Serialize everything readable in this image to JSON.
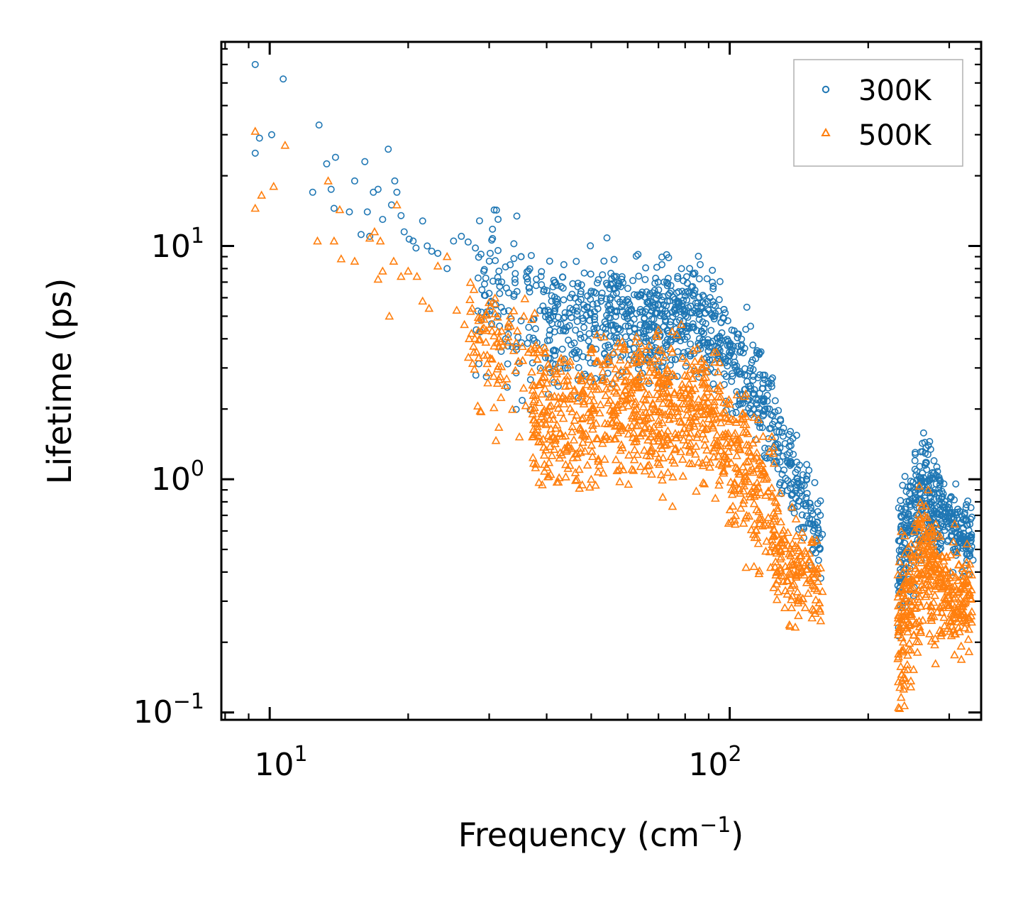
{
  "chart_data": {
    "type": "scatter",
    "xscale": "log",
    "yscale": "log",
    "xlabel": "Frequency (cm",
    "xlabel_sup": "−1",
    "xlabel_close": ")",
    "ylabel": "Lifetime (ps)",
    "xlim": [
      7.85,
      352
    ],
    "ylim": [
      0.093,
      75
    ],
    "xticks": [
      {
        "value": 10,
        "base": "10",
        "exp": "1"
      },
      {
        "value": 100,
        "base": "10",
        "exp": "2"
      }
    ],
    "yticks": [
      {
        "value": 0.1,
        "base": "10",
        "exp": "−1"
      },
      {
        "value": 1,
        "base": "10",
        "exp": "0"
      },
      {
        "value": 10,
        "base": "10",
        "exp": "1"
      }
    ],
    "legend": {
      "position": "top-right"
    },
    "series": [
      {
        "name": "300K",
        "color": "#1f77b4",
        "marker": "circle",
        "points": [
          [
            9.3,
            60
          ],
          [
            9.5,
            29
          ],
          [
            9.3,
            25
          ],
          [
            10.1,
            30
          ],
          [
            10.7,
            52
          ],
          [
            12.4,
            17
          ],
          [
            12.8,
            33
          ],
          [
            13.3,
            22.5
          ],
          [
            13.6,
            17.5
          ],
          [
            13.9,
            24
          ],
          [
            13.8,
            14.5
          ],
          [
            14.9,
            14
          ],
          [
            15.3,
            19
          ],
          [
            15.8,
            11.2
          ],
          [
            16.1,
            23
          ],
          [
            16.3,
            14
          ],
          [
            16.5,
            11
          ],
          [
            16.8,
            17
          ],
          [
            17.2,
            17.5
          ],
          [
            17.6,
            13
          ],
          [
            18.1,
            26
          ],
          [
            18.4,
            15
          ],
          [
            18.7,
            19
          ],
          [
            18.9,
            17
          ],
          [
            19.3,
            13.5
          ],
          [
            19.6,
            11.5
          ],
          [
            20.1,
            10.7
          ],
          [
            20.5,
            10.5
          ],
          [
            20.8,
            9.8
          ],
          [
            21.5,
            12.8
          ],
          [
            22,
            10
          ],
          [
            22.5,
            9.5
          ],
          [
            23.2,
            9.3
          ],
          [
            24.3,
            8
          ],
          [
            25.1,
            10.5
          ],
          [
            26.1,
            11
          ],
          [
            27,
            10.4
          ],
          [
            28,
            9.8
          ],
          [
            29.2,
            7.8
          ],
          [
            30.5,
            11.8
          ],
          [
            31.5,
            7.8
          ],
          [
            32.7,
            6.6
          ],
          [
            34,
            6.2
          ],
          [
            35.2,
            9
          ],
          [
            36.6,
            6.6
          ],
          [
            38,
            7.2
          ],
          [
            39.5,
            6.5
          ],
          [
            41,
            5.8
          ],
          [
            43,
            6.7
          ],
          [
            45,
            6
          ],
          [
            47.5,
            5.9
          ],
          [
            50,
            6.4
          ],
          [
            52.5,
            5.8
          ],
          [
            55,
            6
          ],
          [
            58,
            6.7
          ],
          [
            60,
            5.9
          ],
          [
            64,
            6.2
          ],
          [
            68,
            6.3
          ],
          [
            72,
            7
          ],
          [
            76,
            5.9
          ],
          [
            80,
            6.1
          ],
          [
            85,
            5.5
          ],
          [
            90,
            5.3
          ],
          [
            95,
            4.1
          ],
          [
            100,
            3.4
          ],
          [
            105,
            2.9
          ],
          [
            110,
            2.5
          ],
          [
            118,
            2.2
          ],
          [
            122,
            2
          ],
          [
            126,
            1.4
          ],
          [
            130,
            1.05
          ],
          [
            136,
            0.75
          ],
          [
            143,
            0.62
          ],
          [
            152,
            0.6
          ],
          [
            159,
            0.58
          ],
          [
            232,
            0.35
          ],
          [
            236,
            0.4
          ],
          [
            240,
            0.7
          ],
          [
            245,
            0.8
          ],
          [
            252,
            0.9
          ],
          [
            260,
            1.0
          ],
          [
            268,
            1.1
          ],
          [
            272,
            1.45
          ],
          [
            278,
            1.2
          ],
          [
            285,
            1.0
          ],
          [
            292,
            0.78
          ],
          [
            298,
            0.76
          ],
          [
            305,
            0.72
          ],
          [
            312,
            0.68
          ],
          [
            322,
            0.55
          ],
          [
            326,
            0.52
          ],
          [
            332,
            0.48
          ],
          [
            338,
            0.45
          ]
        ],
        "bands": [
          {
            "x": [
              28,
              40
            ],
            "center_start": 6.5,
            "center_end": 5.2,
            "spread": 0.28,
            "n": 110
          },
          {
            "x": [
              40,
              64
            ],
            "center_start": 4.6,
            "center_end": 4.9,
            "spread": 0.22,
            "n": 280
          },
          {
            "x": [
              64,
              92
            ],
            "center_start": 5.0,
            "center_end": 4.6,
            "spread": 0.2,
            "n": 300
          },
          {
            "x": [
              92,
              125
            ],
            "center_start": 4.2,
            "center_end": 1.9,
            "spread": 0.2,
            "n": 200
          },
          {
            "x": [
              125,
              158
            ],
            "center_start": 1.55,
            "center_end": 0.58,
            "spread": 0.15,
            "n": 140
          },
          {
            "x": [
              232,
              265
            ],
            "center_start": 0.42,
            "center_end": 0.95,
            "spread": 0.22,
            "n": 170
          },
          {
            "x": [
              265,
              290
            ],
            "center_start": 0.95,
            "center_end": 0.7,
            "spread": 0.17,
            "n": 110
          },
          {
            "x": [
              290,
              336
            ],
            "center_start": 0.68,
            "center_end": 0.55,
            "spread": 0.12,
            "n": 130
          }
        ]
      },
      {
        "name": "500K",
        "color": "#ff7f0e",
        "marker": "triangle",
        "points": [
          [
            9.3,
            31
          ],
          [
            9.3,
            14.5
          ],
          [
            9.6,
            16.5
          ],
          [
            10.2,
            18
          ],
          [
            10.8,
            27
          ],
          [
            12.7,
            10.5
          ],
          [
            13.4,
            19
          ],
          [
            13.8,
            10.5
          ],
          [
            14.2,
            14.3
          ],
          [
            14.3,
            8.8
          ],
          [
            15.3,
            8.6
          ],
          [
            16.5,
            10.8
          ],
          [
            16.9,
            11.5
          ],
          [
            17.2,
            7.2
          ],
          [
            17.4,
            10.5
          ],
          [
            17.6,
            7.8
          ],
          [
            18.2,
            5
          ],
          [
            18.6,
            8.6
          ],
          [
            18.9,
            15
          ],
          [
            19.3,
            7.4
          ],
          [
            20,
            7.8
          ],
          [
            20.9,
            7.4
          ],
          [
            21.5,
            5.8
          ],
          [
            22.2,
            5.4
          ],
          [
            23.2,
            8.2
          ],
          [
            24.3,
            9
          ],
          [
            25.5,
            5.3
          ],
          [
            26.5,
            4.6
          ],
          [
            27.8,
            6.5
          ],
          [
            29,
            4.4
          ],
          [
            30.2,
            5.5
          ],
          [
            31.5,
            4
          ],
          [
            33,
            4.5
          ],
          [
            34.7,
            3.2
          ],
          [
            36.5,
            3.5
          ],
          [
            38.6,
            3.6
          ],
          [
            40.5,
            3
          ],
          [
            43,
            3.3
          ],
          [
            45,
            3.2
          ],
          [
            47.5,
            2.7
          ],
          [
            50,
            2.5
          ],
          [
            53,
            3.1
          ],
          [
            56,
            3.5
          ],
          [
            59,
            3.7
          ],
          [
            62,
            3.4
          ],
          [
            66,
            3.6
          ],
          [
            70,
            3.6
          ],
          [
            75,
            3.5
          ],
          [
            79,
            3.3
          ],
          [
            84,
            3.2
          ],
          [
            89,
            2.9
          ],
          [
            95,
            2.4
          ],
          [
            102,
            1.8
          ],
          [
            110,
            1.4
          ],
          [
            116,
            1.2
          ],
          [
            120,
            1.0
          ],
          [
            124,
            0.85
          ],
          [
            127,
            0.75
          ],
          [
            132,
            0.55
          ],
          [
            137,
            0.35
          ],
          [
            141,
            0.26
          ],
          [
            147,
            0.36
          ],
          [
            153,
            0.34
          ],
          [
            159,
            0.33
          ],
          [
            232,
            0.17
          ],
          [
            236,
            0.26
          ],
          [
            242,
            0.42
          ],
          [
            250,
            0.45
          ],
          [
            258,
            0.55
          ],
          [
            265,
            0.6
          ],
          [
            270,
            0.9
          ],
          [
            278,
            0.48
          ],
          [
            286,
            0.43
          ],
          [
            294,
            0.41
          ],
          [
            302,
            0.4
          ],
          [
            310,
            0.38
          ],
          [
            318,
            0.34
          ],
          [
            326,
            0.3
          ],
          [
            336,
            0.27
          ]
        ],
        "bands": [
          {
            "x": [
              27,
              40
            ],
            "center_start": 4.3,
            "center_end": 2.4,
            "spread": 0.3,
            "n": 110
          },
          {
            "x": [
              37,
              62
            ],
            "center_start": 1.7,
            "center_end": 2.1,
            "spread": 0.27,
            "n": 320
          },
          {
            "x": [
              62,
              94
            ],
            "center_start": 2.1,
            "center_end": 1.9,
            "spread": 0.27,
            "n": 330
          },
          {
            "x": [
              94,
              125
            ],
            "center_start": 1.6,
            "center_end": 0.68,
            "spread": 0.26,
            "n": 200
          },
          {
            "x": [
              125,
              158
            ],
            "center_start": 0.52,
            "center_end": 0.3,
            "spread": 0.2,
            "n": 140
          },
          {
            "x": [
              232,
              265
            ],
            "center_start": 0.2,
            "center_end": 0.45,
            "spread": 0.28,
            "n": 170
          },
          {
            "x": [
              265,
              290
            ],
            "center_start": 0.48,
            "center_end": 0.34,
            "spread": 0.24,
            "n": 110
          },
          {
            "x": [
              290,
              336
            ],
            "center_start": 0.34,
            "center_end": 0.28,
            "spread": 0.2,
            "n": 130
          }
        ]
      }
    ]
  }
}
